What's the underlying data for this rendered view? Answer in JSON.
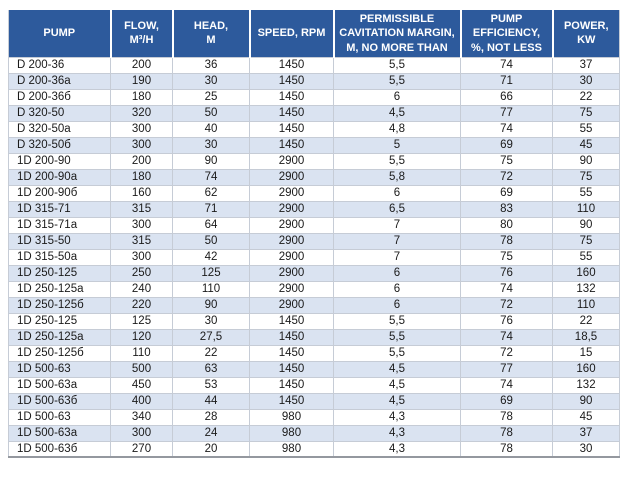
{
  "colors": {
    "header_bg": "#2d5a9c",
    "header_text": "#ffffff",
    "row_alt_bg": "#dae3f1",
    "row_bg": "#ffffff",
    "grid_border": "#c6ccd6",
    "outer_border": "#94989f",
    "body_text": "#1a1a1a"
  },
  "table": {
    "columns": [
      "PUMP",
      "FLOW,\nM³/H",
      "HEAD,\nM",
      "SPEED, RPM",
      "PERMISSIBLE\nCAVITATION MARGIN,\nM, NO MORE THAN",
      "PUMP\nEFFICIENCY,\n%, NOT LESS",
      "POWER,\nKW"
    ],
    "column_keys": [
      "pump",
      "flow",
      "head",
      "speed",
      "cavitation-margin",
      "efficiency",
      "power"
    ],
    "rows": [
      [
        "D 200-36",
        "200",
        "36",
        "1450",
        "5,5",
        "74",
        "37"
      ],
      [
        "D 200-36a",
        "190",
        "30",
        "1450",
        "5,5",
        "71",
        "30"
      ],
      [
        "D 200-36б",
        "180",
        "25",
        "1450",
        "6",
        "66",
        "22"
      ],
      [
        "D 320-50",
        "320",
        "50",
        "1450",
        "4,5",
        "77",
        "75"
      ],
      [
        "D 320-50a",
        "300",
        "40",
        "1450",
        "4,8",
        "74",
        "55"
      ],
      [
        "D 320-50б",
        "300",
        "30",
        "1450",
        "5",
        "69",
        "45"
      ],
      [
        "1D 200-90",
        "200",
        "90",
        "2900",
        "5,5",
        "75",
        "90"
      ],
      [
        "1D 200-90a",
        "180",
        "74",
        "2900",
        "5,8",
        "72",
        "75"
      ],
      [
        "1D 200-90б",
        "160",
        "62",
        "2900",
        "6",
        "69",
        "55"
      ],
      [
        "1D 315-71",
        "315",
        "71",
        "2900",
        "6,5",
        "83",
        "110"
      ],
      [
        "1D 315-71a",
        "300",
        "64",
        "2900",
        "7",
        "80",
        "90"
      ],
      [
        "1D 315-50",
        "315",
        "50",
        "2900",
        "7",
        "78",
        "75"
      ],
      [
        "1D 315-50a",
        "300",
        "42",
        "2900",
        "7",
        "75",
        "55"
      ],
      [
        "1D 250-125",
        "250",
        "125",
        "2900",
        "6",
        "76",
        "160"
      ],
      [
        "1D 250-125a",
        "240",
        "110",
        "2900",
        "6",
        "74",
        "132"
      ],
      [
        "1D 250-125б",
        "220",
        "90",
        "2900",
        "6",
        "72",
        "110"
      ],
      [
        "1D 250-125",
        "125",
        "30",
        "1450",
        "5,5",
        "76",
        "22"
      ],
      [
        "1D 250-125a",
        "120",
        "27,5",
        "1450",
        "5,5",
        "74",
        "18,5"
      ],
      [
        "1D 250-125б",
        "110",
        "22",
        "1450",
        "5,5",
        "72",
        "15"
      ],
      [
        "1D 500-63",
        "500",
        "63",
        "1450",
        "4,5",
        "77",
        "160"
      ],
      [
        "1D 500-63a",
        "450",
        "53",
        "1450",
        "4,5",
        "74",
        "132"
      ],
      [
        "1D 500-63б",
        "400",
        "44",
        "1450",
        "4,5",
        "69",
        "90"
      ],
      [
        "1D 500-63",
        "340",
        "28",
        "980",
        "4,3",
        "78",
        "45"
      ],
      [
        "1D 500-63a",
        "300",
        "24",
        "980",
        "4,3",
        "78",
        "37"
      ],
      [
        "1D 500-63б",
        "270",
        "20",
        "980",
        "4,3",
        "78",
        "30"
      ]
    ]
  }
}
